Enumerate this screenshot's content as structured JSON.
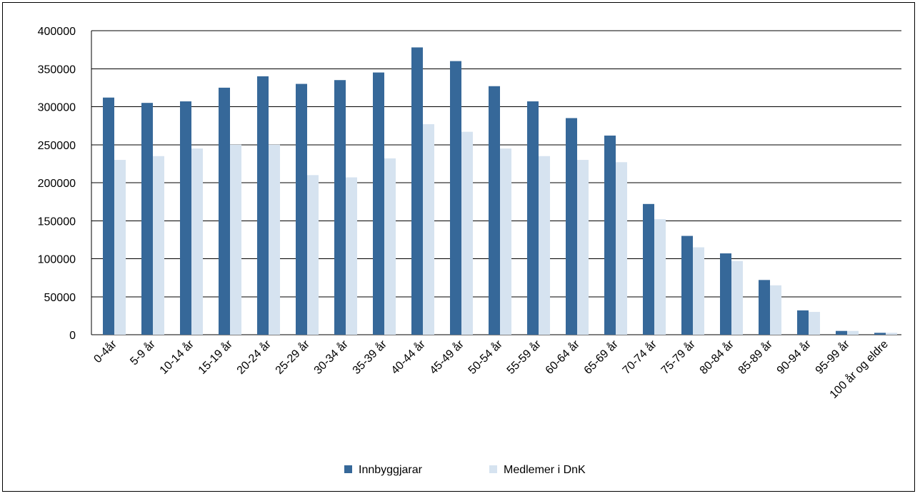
{
  "chart_data": {
    "type": "bar",
    "title": "",
    "xlabel": "",
    "ylabel": "",
    "ylim": [
      0,
      400000
    ],
    "yticks": [
      0,
      50000,
      100000,
      150000,
      200000,
      250000,
      300000,
      350000,
      400000
    ],
    "grid": true,
    "legend_position": "bottom",
    "categories": [
      "0-4år",
      "5-9 år",
      "10-14 år",
      "15-19 år",
      "20-24 år",
      "25-29 år",
      "30-34 år",
      "35-39 år",
      "40-44 år",
      "45-49 år",
      "50-54 år",
      "55-59 år",
      "60-64 år",
      "65-69 år",
      "70-74 år",
      "75-79 år",
      "80-84 år",
      "85-89 år",
      "90-94 år",
      "95-99 år",
      "100 år og eldre"
    ],
    "series": [
      {
        "name": "Innbyggjarar",
        "color": "#366899",
        "values": [
          312000,
          305000,
          307000,
          325000,
          340000,
          330000,
          335000,
          345000,
          378000,
          360000,
          327000,
          307000,
          285000,
          262000,
          172000,
          130000,
          107000,
          72000,
          32000,
          5000,
          2500
        ]
      },
      {
        "name": "Medlemer i DnK",
        "color": "#d6e3f0",
        "values": [
          230000,
          235000,
          245000,
          250000,
          250000,
          210000,
          207000,
          232000,
          277000,
          267000,
          245000,
          235000,
          230000,
          227000,
          152000,
          115000,
          97000,
          65000,
          30000,
          5000,
          2500
        ]
      }
    ]
  }
}
